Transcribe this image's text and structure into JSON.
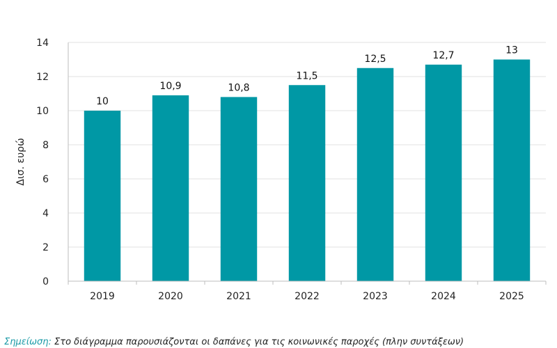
{
  "chart_data": {
    "type": "bar",
    "categories": [
      "2019",
      "2020",
      "2021",
      "2022",
      "2023",
      "2024",
      "2025"
    ],
    "values": [
      10,
      10.9,
      10.8,
      11.5,
      12.5,
      12.7,
      13
    ],
    "value_labels": [
      "10",
      "10,9",
      "10,8",
      "11,5",
      "12,5",
      "12,7",
      "13"
    ],
    "ylabel": "Δισ. ευρώ",
    "xlabel": "",
    "title": "",
    "ylim": [
      0,
      14
    ],
    "yticks": [
      0,
      2,
      4,
      6,
      8,
      10,
      12,
      14
    ],
    "grid": true,
    "bar_color": "#0098a5"
  },
  "note": {
    "label": "Σημείωση:",
    "text": "Στο διάγραμμα παρουσιάζονται οι δαπάνες για τις κοινωνικές παροχές (πλην συντάξεων)"
  }
}
